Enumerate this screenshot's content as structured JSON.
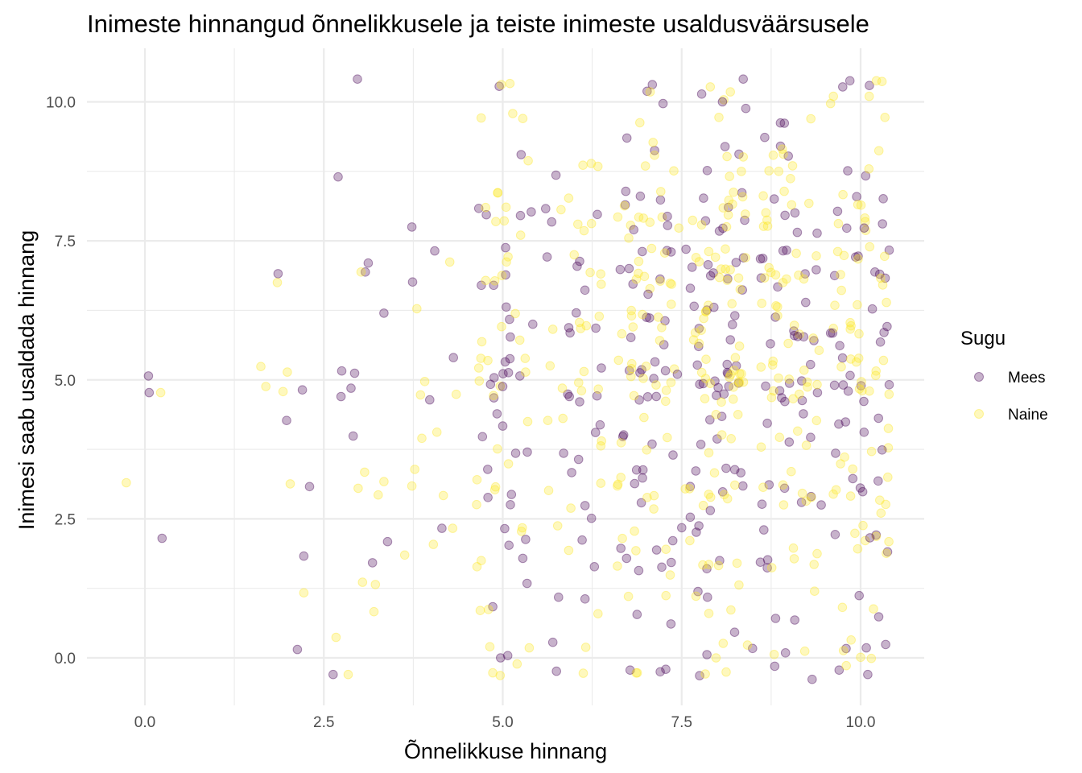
{
  "chart_data": {
    "type": "scatter",
    "title": "Inimeste hinnangud õnnelikkusele ja teiste inimeste usaldusväärsusele",
    "xlabel": "Õnnelikkuse hinnang",
    "ylabel": "Inimesi saab usaldada hinnang",
    "xlim": [
      -0.4,
      10.5
    ],
    "ylim": [
      -0.75,
      10.8
    ],
    "x_ticks": [
      0,
      2.5,
      5,
      7.5,
      10
    ],
    "x_tick_labels": [
      "0.0",
      "2.5",
      "5.0",
      "7.5",
      "10.0"
    ],
    "y_ticks": [
      0,
      2.5,
      5,
      7.5,
      10
    ],
    "y_tick_labels": [
      "0.0",
      "2.5",
      "5.0",
      "7.5",
      "10.0"
    ],
    "grid": true,
    "legend_position": "right",
    "legend_title": "Sugu",
    "jitter": 0.4,
    "alpha": 0.3,
    "series": [
      {
        "name": "Mees",
        "color": "#440154",
        "points": [
          [
            0.05,
            5.07
          ],
          [
            0.06,
            4.77
          ],
          [
            0.24,
            2.15
          ],
          [
            1.86,
            6.91
          ],
          [
            1.98,
            4.27
          ],
          [
            2.13,
            0.15
          ],
          [
            2.2,
            4.82
          ],
          [
            2.22,
            1.83
          ],
          [
            2.3,
            3.08
          ],
          [
            2.63,
            -0.3
          ],
          [
            2.7,
            8.65
          ],
          [
            2.74,
            4.7
          ],
          [
            2.75,
            5.16
          ],
          [
            2.88,
            4.85
          ],
          [
            2.91,
            3.99
          ],
          [
            2.93,
            5.12
          ],
          [
            2.97,
            10.41
          ],
          [
            3.08,
            6.94
          ],
          [
            3.12,
            7.1
          ],
          [
            3.18,
            1.71
          ],
          [
            3.34,
            6.2
          ],
          [
            3.39,
            2.09
          ],
          [
            3.73,
            7.75
          ],
          [
            3.74,
            6.76
          ],
          [
            3.98,
            4.64
          ],
          [
            4.05,
            7.32
          ],
          [
            4.15,
            2.33
          ],
          [
            4.31,
            5.4
          ],
          [
            4.77,
            7.97
          ],
          [
            4.79,
            3.39
          ],
          [
            4.86,
            0.92
          ],
          [
            4.88,
            5.04
          ],
          [
            4.92,
            4.39
          ],
          [
            4.95,
            10.28
          ],
          [
            4.97,
            0.0
          ],
          [
            5.0,
            4.88
          ],
          [
            5.0,
            4.17
          ],
          [
            5.07,
            0.04
          ],
          [
            5.1,
            5.38
          ],
          [
            5.18,
            3.68
          ],
          [
            5.24,
            5.07
          ],
          [
            5.28,
            1.79
          ],
          [
            5.32,
            2.13
          ],
          [
            5.34,
            1.34
          ],
          [
            5.42,
            6.0
          ],
          [
            5.6,
            8.08
          ],
          [
            5.62,
            7.21
          ],
          [
            5.7,
            0.28
          ],
          [
            5.75,
            -0.24
          ],
          [
            5.78,
            1.09
          ],
          [
            5.85,
            3.68
          ],
          [
            5.93,
            4.7
          ],
          [
            6.06,
            3.57
          ],
          [
            6.15,
            1.06
          ],
          [
            6.24,
            2.51
          ],
          [
            6.28,
            1.64
          ],
          [
            6.3,
            5.93
          ],
          [
            6.36,
            4.19
          ],
          [
            6.65,
            1.97
          ],
          [
            6.69,
            4.01
          ],
          [
            6.73,
            1.79
          ],
          [
            6.78,
            -0.22
          ],
          [
            6.83,
            7.7
          ],
          [
            6.9,
            1.57
          ],
          [
            6.96,
            3.38
          ],
          [
            7.03,
            6.54
          ],
          [
            7.09,
            10.31
          ],
          [
            7.15,
            1.94
          ],
          [
            7.2,
            -0.25
          ],
          [
            7.24,
            9.97
          ],
          [
            7.3,
            7.94
          ],
          [
            7.35,
            0.61
          ],
          [
            7.44,
            5.1
          ],
          [
            7.5,
            2.34
          ],
          [
            7.56,
            7.35
          ],
          [
            7.62,
            2.53
          ],
          [
            7.75,
            -0.32
          ],
          [
            7.78,
            10.14
          ],
          [
            7.86,
            1.09
          ],
          [
            7.9,
            2.65
          ],
          [
            8.01,
            4.86
          ],
          [
            8.07,
            10.0
          ],
          [
            8.12,
            3.41
          ],
          [
            8.18,
            5.72
          ],
          [
            8.24,
            0.46
          ],
          [
            8.3,
            9.06
          ],
          [
            8.36,
            10.41
          ],
          [
            8.49,
            0.17
          ],
          [
            8.6,
            1.72
          ],
          [
            8.66,
            9.36
          ],
          [
            8.74,
            5.65
          ],
          [
            8.8,
            -0.15
          ],
          [
            8.88,
            9.62
          ],
          [
            8.95,
            0.09
          ],
          [
            9.08,
            0.68
          ],
          [
            9.12,
            5.78
          ],
          [
            9.2,
            4.39
          ],
          [
            9.38,
            6.98
          ],
          [
            9.45,
            2.75
          ],
          [
            9.58,
            5.84
          ],
          [
            9.65,
            3.68
          ],
          [
            9.7,
            -0.22
          ],
          [
            9.75,
            10.27
          ],
          [
            9.82,
            8.76
          ],
          [
            9.85,
            10.38
          ],
          [
            9.98,
            1.12
          ],
          [
            10.05,
            7.73
          ],
          [
            10.08,
            0.18
          ],
          [
            10.1,
            -0.3
          ],
          [
            10.13,
            2.16
          ],
          [
            10.2,
            6.94
          ],
          [
            10.25,
            4.31
          ],
          [
            10.3,
            3.74
          ],
          [
            10.35,
            0.24
          ],
          [
            10.37,
            5.96
          ]
        ]
      },
      {
        "name": "Naine",
        "color": "#fde725",
        "points": [
          [
            -0.26,
            3.15
          ],
          [
            0.22,
            4.77
          ],
          [
            1.62,
            5.24
          ],
          [
            1.69,
            4.88
          ],
          [
            1.85,
            6.75
          ],
          [
            1.93,
            4.79
          ],
          [
            1.99,
            5.14
          ],
          [
            2.03,
            3.13
          ],
          [
            2.22,
            1.17
          ],
          [
            2.67,
            0.37
          ],
          [
            2.84,
            -0.3
          ],
          [
            2.98,
            3.05
          ],
          [
            3.02,
            6.94
          ],
          [
            3.04,
            1.36
          ],
          [
            3.07,
            3.34
          ],
          [
            3.2,
            0.83
          ],
          [
            3.22,
            1.32
          ],
          [
            3.26,
            2.93
          ],
          [
            3.34,
            3.17
          ],
          [
            3.63,
            1.85
          ],
          [
            3.73,
            3.09
          ],
          [
            3.77,
            3.39
          ],
          [
            3.8,
            6.28
          ],
          [
            3.85,
            4.73
          ],
          [
            3.87,
            3.95
          ],
          [
            3.91,
            4.97
          ],
          [
            4.03,
            2.04
          ],
          [
            4.08,
            4.06
          ],
          [
            4.17,
            2.92
          ],
          [
            4.26,
            7.12
          ],
          [
            4.3,
            2.33
          ],
          [
            4.35,
            4.74
          ],
          [
            4.64,
            1.64
          ],
          [
            4.7,
            1.75
          ],
          [
            4.76,
            8.1
          ],
          [
            4.8,
            0.87
          ],
          [
            4.82,
            0.2
          ],
          [
            4.86,
            -0.27
          ],
          [
            4.93,
            8.36
          ],
          [
            4.98,
            10.31
          ],
          [
            5.02,
            7.86
          ],
          [
            5.08,
            3.49
          ],
          [
            5.1,
            10.33
          ],
          [
            5.14,
            9.79
          ],
          [
            5.2,
            -0.11
          ],
          [
            5.28,
            9.7
          ],
          [
            5.32,
            5.14
          ],
          [
            5.37,
            0.18
          ],
          [
            5.63,
            4.27
          ],
          [
            5.7,
            5.91
          ],
          [
            6.05,
            7.8
          ],
          [
            6.12,
            8.86
          ],
          [
            6.16,
            0.19
          ],
          [
            6.24,
            7.81
          ],
          [
            6.33,
            8.84
          ],
          [
            6.38,
            3.9
          ],
          [
            6.7,
            8.13
          ],
          [
            6.76,
            7.55
          ],
          [
            6.8,
            6.15
          ],
          [
            6.84,
            2.28
          ],
          [
            6.88,
            -0.27
          ],
          [
            6.98,
            6.86
          ],
          [
            7.06,
            10.18
          ],
          [
            7.1,
            9.27
          ],
          [
            7.12,
            9.04
          ],
          [
            7.22,
            5.94
          ],
          [
            7.28,
            1.12
          ],
          [
            7.34,
            1.49
          ],
          [
            7.46,
            7.73
          ],
          [
            7.55,
            3.04
          ],
          [
            7.7,
            1.11
          ],
          [
            7.83,
            -0.29
          ],
          [
            7.88,
            0.8
          ],
          [
            7.9,
            10.27
          ],
          [
            7.98,
            0.0
          ],
          [
            8.02,
            9.72
          ],
          [
            8.08,
            0.26
          ],
          [
            8.18,
            10.18
          ],
          [
            8.25,
            5.4
          ],
          [
            8.3,
            1.31
          ],
          [
            8.36,
            9.01
          ],
          [
            8.42,
            0.23
          ],
          [
            8.64,
            8.31
          ],
          [
            8.72,
            8.76
          ],
          [
            8.78,
            9.04
          ],
          [
            8.92,
            9.06
          ],
          [
            9.02,
            8.62
          ],
          [
            9.05,
            8.85
          ],
          [
            9.12,
            4.08
          ],
          [
            9.22,
            0.12
          ],
          [
            9.24,
            2.82
          ],
          [
            9.35,
            1.68
          ],
          [
            9.42,
            5.53
          ],
          [
            9.58,
            9.97
          ],
          [
            9.62,
            10.1
          ],
          [
            9.64,
            6.34
          ],
          [
            9.72,
            3.49
          ],
          [
            9.76,
            0.13
          ],
          [
            9.8,
            -0.14
          ],
          [
            9.86,
            2.91
          ],
          [
            9.92,
            2.24
          ],
          [
            9.96,
            1.96
          ],
          [
            10.0,
            0.01
          ],
          [
            10.06,
            7.91
          ],
          [
            10.12,
            10.1
          ],
          [
            10.15,
            -0.01
          ],
          [
            10.18,
            0.88
          ],
          [
            10.22,
            10.38
          ],
          [
            10.28,
            6.83
          ],
          [
            10.32,
            5.35
          ],
          [
            10.34,
            9.72
          ],
          [
            10.36,
            1.88
          ],
          [
            10.38,
            3.25
          ]
        ]
      }
    ]
  }
}
